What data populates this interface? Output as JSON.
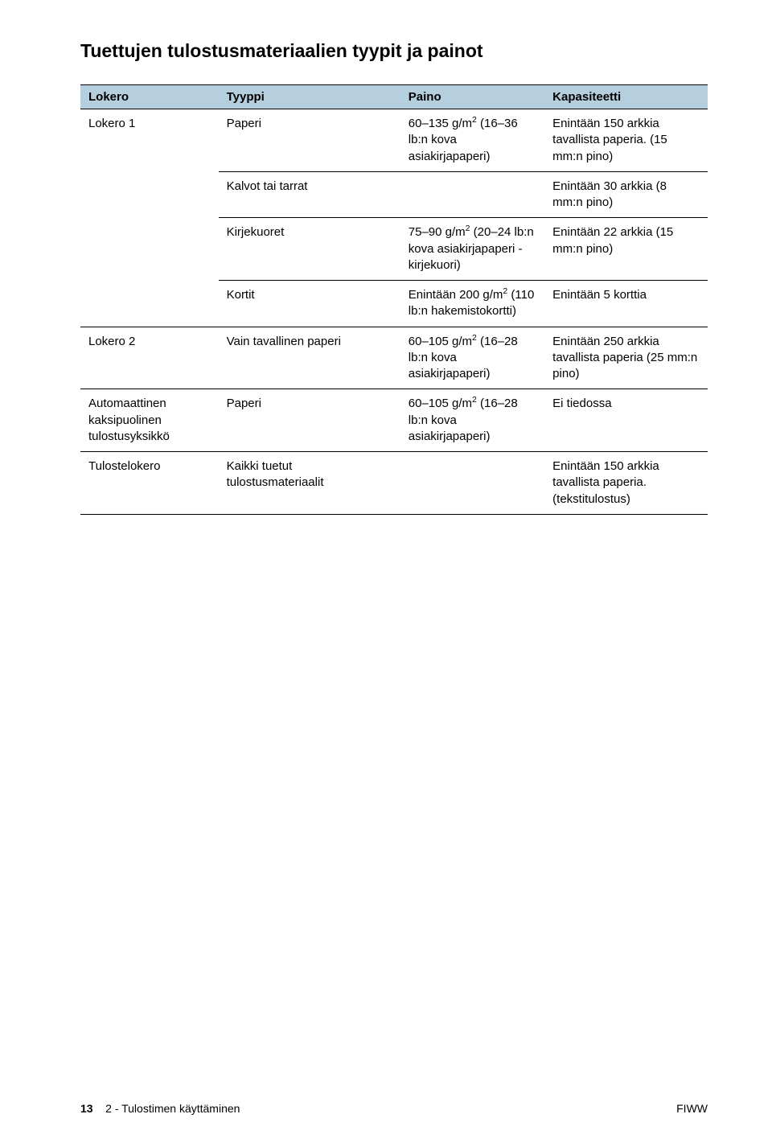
{
  "title": "Tuettujen tulostusmateriaalien tyypit ja painot",
  "table": {
    "header_bg": "#b6cfde",
    "border_color": "#000000",
    "font_size_pt": 11,
    "columns": [
      "Lokero",
      "Tyyppi",
      "Paino",
      "Kapasiteetti"
    ],
    "col_widths_pct": [
      22,
      29,
      23,
      26
    ],
    "rows": [
      {
        "lokero": "Lokero 1",
        "tyyppi": "Paperi",
        "paino_pre": "60–135 g/m",
        "paino_sup": "2",
        "paino_post": " (16–36 lb:n kova asiakirjapaperi)",
        "kapasiteetti": "Enintään 150 arkkia tavallista paperia. (15 mm:n pino)"
      },
      {
        "lokero": "",
        "tyyppi": "Kalvot tai tarrat",
        "paino_pre": "",
        "paino_sup": "",
        "paino_post": "",
        "kapasiteetti": "Enintään 30 arkkia (8 mm:n pino)"
      },
      {
        "lokero": "",
        "tyyppi": "Kirjekuoret",
        "paino_pre": "75–90 g/m",
        "paino_sup": "2",
        "paino_post": " (20–24 lb:n kova asiakirjapaperi -kirjekuori)",
        "kapasiteetti": "Enintään 22 arkkia (15 mm:n pino)"
      },
      {
        "lokero": "",
        "tyyppi": "Kortit",
        "paino_pre": "Enintään 200 g/m",
        "paino_sup": "2",
        "paino_post": " (110 lb:n hakemistokortti)",
        "kapasiteetti": "Enintään 5 korttia"
      },
      {
        "lokero": "Lokero 2",
        "tyyppi": "Vain tavallinen paperi",
        "paino_pre": "60–105 g/m",
        "paino_sup": "2",
        "paino_post": " (16–28 lb:n kova asiakirjapaperi)",
        "kapasiteetti": "Enintään 250 arkkia tavallista paperia (25 mm:n pino)"
      },
      {
        "lokero": "Automaattinen kaksipuolinen tulostusyksikkö",
        "tyyppi": "Paperi",
        "paino_pre": "60–105 g/m",
        "paino_sup": "2",
        "paino_post": " (16–28 lb:n kova asiakirjapaperi)",
        "kapasiteetti": "Ei tiedossa"
      },
      {
        "lokero": "Tulostelokero",
        "tyyppi": "Kaikki tuetut tulostusmateriaalit",
        "paino_pre": "",
        "paino_sup": "",
        "paino_post": "",
        "kapasiteetti": "Enintään 150 arkkia tavallista paperia. (tekstitulostus)"
      }
    ]
  },
  "footer": {
    "page_number": "13",
    "section": "2 - Tulostimen käyttäminen",
    "right": "FIWW"
  },
  "colors": {
    "text": "#000000",
    "background": "#ffffff"
  },
  "typography": {
    "title_fontsize_pt": 17,
    "title_weight": "bold",
    "body_fontsize_pt": 11,
    "footer_fontsize_pt": 10,
    "font_family": "Arial/Helvetica"
  }
}
